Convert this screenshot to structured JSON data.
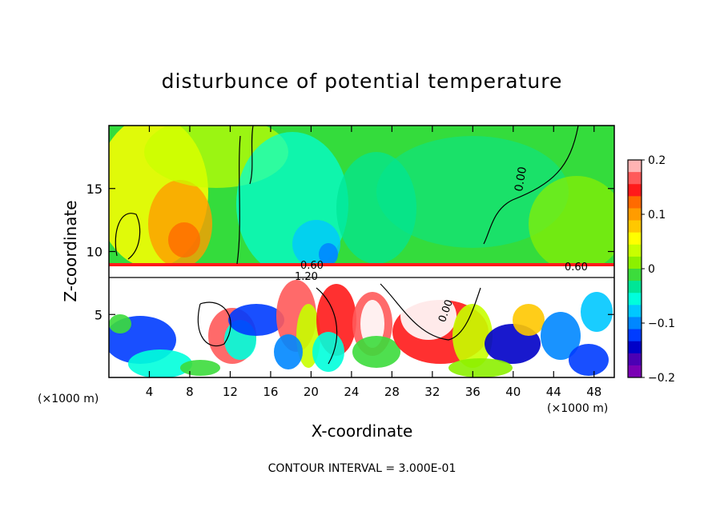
{
  "chart_data": {
    "type": "heatmap",
    "title": "disturbunce of potential temperature",
    "xlabel": "X-coordinate",
    "ylabel": "Z-coordinate",
    "x_unit": "(×1000 m)",
    "y_unit": "(×1000 m)",
    "xlim": [
      0,
      50
    ],
    "ylim": [
      0,
      20
    ],
    "x_ticks": [
      4,
      8,
      12,
      16,
      20,
      24,
      28,
      32,
      36,
      40,
      44,
      48
    ],
    "y_ticks": [
      5,
      10,
      15
    ],
    "colorbar": {
      "range": [
        -0.2,
        0.2
      ],
      "tick_values": [
        0.2,
        0.1,
        0,
        -0.1,
        -0.2
      ],
      "tick_labels": [
        "0.2",
        "0.1",
        "0",
        "−0.1",
        "−0.2"
      ],
      "colors": [
        "#ffb3b3",
        "#ff5a5a",
        "#ff1a1a",
        "#ff6a00",
        "#ff9c00",
        "#ffc800",
        "#ffff00",
        "#c8ff00",
        "#8cf000",
        "#3cdc3c",
        "#00e696",
        "#00ffdc",
        "#00c8ff",
        "#0087ff",
        "#003cff",
        "#0000c8",
        "#4b00b4",
        "#7a00b4"
      ]
    },
    "contour_labels": [
      "0.00",
      "0.60",
      "1.20",
      "0.60",
      "0.00"
    ],
    "footer": "CONTOUR INTERVAL = 3.000E-01"
  }
}
